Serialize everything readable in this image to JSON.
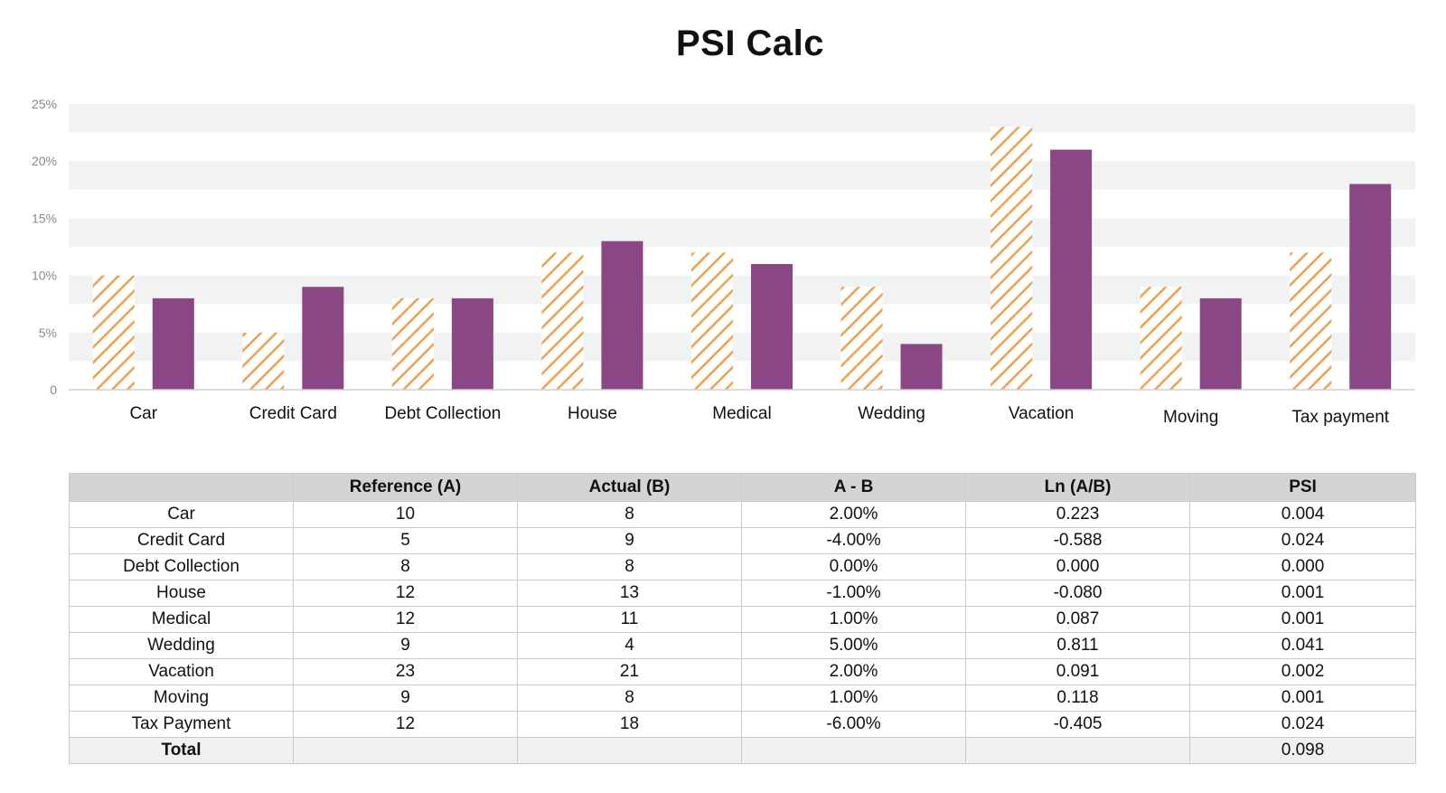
{
  "title": "PSI Calc",
  "colors": {
    "reference": "#f0a04b",
    "actual": "#8b4685",
    "band": "#f1f2f2",
    "axis": "#cfcfcf",
    "tick": "#888888"
  },
  "chart_data": {
    "type": "bar",
    "title": "PSI Calc",
    "categories": [
      "Car",
      "Credit Card",
      "Debt Collection",
      "House",
      "Medical",
      "Wedding",
      "Vacation",
      "Moving",
      "Tax payment"
    ],
    "series": [
      {
        "values": [
          10,
          5,
          8,
          12,
          12,
          9,
          23,
          9,
          12
        ],
        "pattern": "hatched",
        "color": "#f0a04b"
      },
      {
        "values": [
          8,
          9,
          8,
          13,
          11,
          4,
          21,
          8,
          18
        ],
        "pattern": "solid",
        "color": "#8b4685"
      }
    ],
    "y_ticks": [
      "0",
      "5%",
      "10%",
      "15%",
      "20%",
      "25%"
    ],
    "ylim": [
      0,
      25
    ],
    "xlabel": "",
    "ylabel": "",
    "grid": "alternating bands",
    "legend": "none"
  },
  "table": {
    "headers": [
      "",
      "Reference (A)",
      "Actual (B)",
      "A - B",
      "Ln (A/B)",
      "PSI"
    ],
    "rows": [
      [
        "Car",
        "10",
        "8",
        "2.00%",
        "0.223",
        "0.004"
      ],
      [
        "Credit Card",
        "5",
        "9",
        "-4.00%",
        "-0.588",
        "0.024"
      ],
      [
        "Debt Collection",
        "8",
        "8",
        "0.00%",
        "0.000",
        "0.000"
      ],
      [
        "House",
        "12",
        "13",
        "-1.00%",
        "-0.080",
        "0.001"
      ],
      [
        "Medical",
        "12",
        "11",
        "1.00%",
        "0.087",
        "0.001"
      ],
      [
        "Wedding",
        "9",
        "4",
        "5.00%",
        "0.811",
        "0.041"
      ],
      [
        "Vacation",
        "23",
        "21",
        "2.00%",
        "0.091",
        "0.002"
      ],
      [
        "Moving",
        "9",
        "8",
        "1.00%",
        "0.118",
        "0.001"
      ],
      [
        "Tax Payment",
        "12",
        "18",
        "-6.00%",
        "-0.405",
        "0.024"
      ]
    ],
    "total": [
      "Total",
      "",
      "",
      "",
      "",
      "0.098"
    ]
  }
}
